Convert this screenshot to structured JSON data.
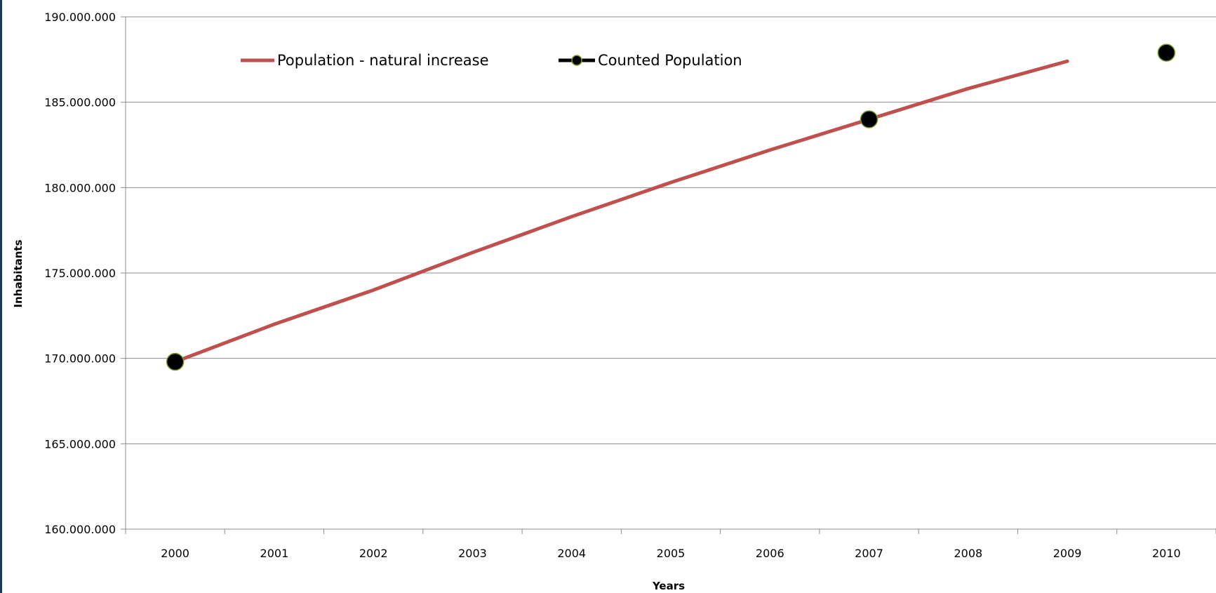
{
  "chart_data": {
    "type": "line",
    "xlabel": "Years",
    "ylabel": "Inhabitants",
    "categories": [
      "2000",
      "2001",
      "2002",
      "2003",
      "2004",
      "2005",
      "2006",
      "2007",
      "2008",
      "2009",
      "2010"
    ],
    "ylim": [
      160000000,
      190000000
    ],
    "yticks": [
      160000000,
      165000000,
      170000000,
      175000000,
      180000000,
      185000000,
      190000000
    ],
    "ytick_labels": [
      "160.000.000",
      "165.000.000",
      "170.000.000",
      "175.000.000",
      "180.000.000",
      "185.000.000",
      "190.000.000"
    ],
    "grid": true,
    "legend_position": "top",
    "series": [
      {
        "name": "Population - natural increase",
        "style": "line",
        "color": "#c0504d",
        "values": [
          169800000,
          172000000,
          174000000,
          176200000,
          178300000,
          180300000,
          182200000,
          184000000,
          185800000,
          187400000,
          null
        ]
      },
      {
        "name": "Counted Population",
        "style": "markers",
        "color": "#000000",
        "marker_edge_color": "#7a9a2a",
        "values": [
          169800000,
          null,
          null,
          null,
          null,
          null,
          null,
          184000000,
          null,
          null,
          187900000
        ]
      }
    ]
  }
}
